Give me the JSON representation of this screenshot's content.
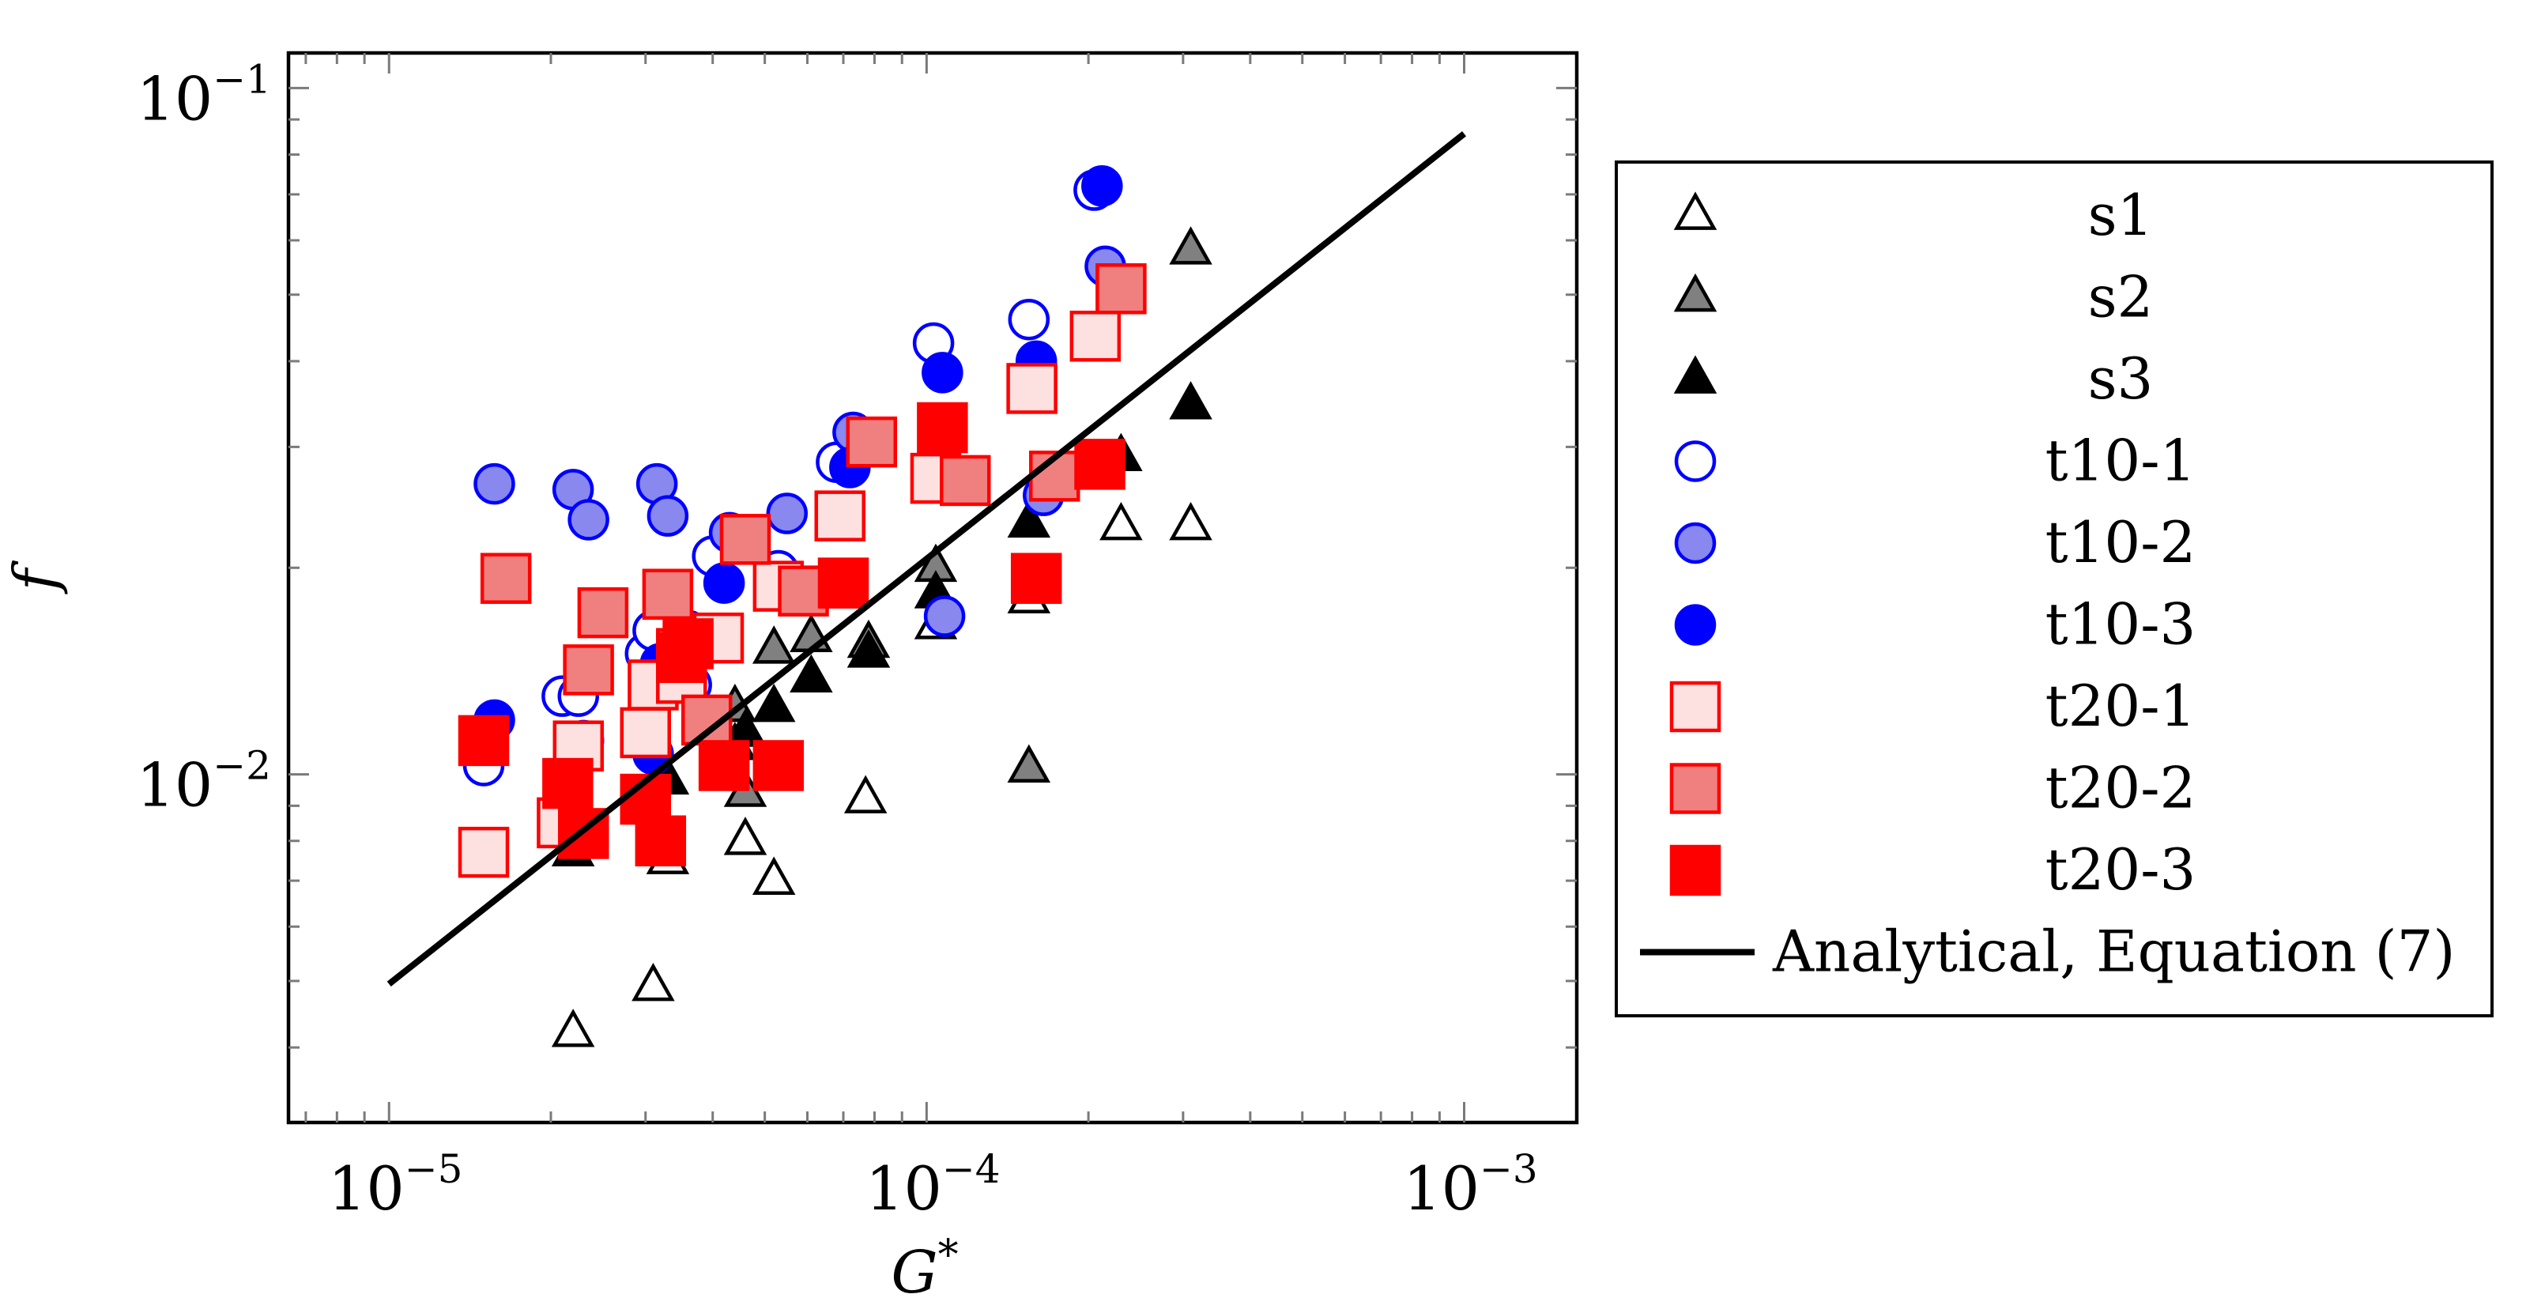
{
  "chart_data": {
    "type": "scatter",
    "title": "",
    "xlabel": "G*",
    "ylabel": "f",
    "xscale": "log",
    "yscale": "log",
    "xlim": [
      6.5e-06,
      0.00162
    ],
    "ylim": [
      0.00311,
      0.1125
    ],
    "xticks": [
      {
        "value": 1e-05,
        "base": "10",
        "exp": "−5"
      },
      {
        "value": 0.0001,
        "base": "10",
        "exp": "−4"
      },
      {
        "value": 0.001,
        "base": "10",
        "exp": "−3"
      }
    ],
    "yticks": [
      {
        "value": 0.01,
        "base": "10",
        "exp": "−2"
      },
      {
        "value": 0.1,
        "base": "10",
        "exp": "−1"
      }
    ],
    "legend_position": "outside-right",
    "series": [
      {
        "name": "s1",
        "marker": "triangle",
        "fill": "#ffffff",
        "stroke": "#000000",
        "points": [
          [
            2.2e-05,
            0.0042
          ],
          [
            3.1e-05,
            0.0049
          ],
          [
            3.3e-05,
            0.0075
          ],
          [
            4.6e-05,
            0.008
          ],
          [
            5.2e-05,
            0.007
          ],
          [
            7.7e-05,
            0.0092
          ],
          [
            0.000104,
            0.0165
          ],
          [
            0.000155,
            0.018
          ],
          [
            0.00023,
            0.023
          ],
          [
            0.00031,
            0.023
          ]
        ]
      },
      {
        "name": "s2",
        "marker": "triangle",
        "fill": "#808080",
        "stroke": "#000000",
        "points": [
          [
            4.4e-05,
            0.0125
          ],
          [
            4.6e-05,
            0.0094
          ],
          [
            5.2e-05,
            0.0152
          ],
          [
            6.1e-05,
            0.0158
          ],
          [
            7.8e-05,
            0.0155
          ],
          [
            0.000104,
            0.02
          ],
          [
            0.000155,
            0.0102
          ],
          [
            0.00031,
            0.058
          ]
        ]
      },
      {
        "name": "s3",
        "marker": "triangle",
        "fill": "#000000",
        "stroke": "#000000",
        "points": [
          [
            2.2e-05,
            0.0077
          ],
          [
            3.3e-05,
            0.0098
          ],
          [
            4.4e-05,
            0.011
          ],
          [
            4.6e-05,
            0.0115
          ],
          [
            5.2e-05,
            0.0125
          ],
          [
            6.1e-05,
            0.0138
          ],
          [
            7.8e-05,
            0.015
          ],
          [
            0.000104,
            0.0183
          ],
          [
            0.000155,
            0.0232
          ],
          [
            0.00023,
            0.029
          ],
          [
            0.00031,
            0.0345
          ]
        ]
      },
      {
        "name": "t10-1",
        "marker": "circle",
        "fill": "#ffffff",
        "stroke": "#0000ff",
        "points": [
          [
            1.5e-05,
            0.0103
          ],
          [
            2.1e-05,
            0.013
          ],
          [
            2.25e-05,
            0.013
          ],
          [
            3e-05,
            0.015
          ],
          [
            3.1e-05,
            0.0162
          ],
          [
            3.65e-05,
            0.0135
          ],
          [
            4e-05,
            0.0208
          ],
          [
            5.3e-05,
            0.0198
          ],
          [
            6.8e-05,
            0.0285
          ],
          [
            0.000103,
            0.0425
          ],
          [
            0.000155,
            0.046
          ],
          [
            0.000205,
            0.071
          ]
        ]
      },
      {
        "name": "t10-2",
        "marker": "circle",
        "fill": "#8888ee",
        "stroke": "#0000ff",
        "points": [
          [
            1.57e-05,
            0.0265
          ],
          [
            2.2e-05,
            0.026
          ],
          [
            2.35e-05,
            0.0235
          ],
          [
            2.3e-05,
            0.0112
          ],
          [
            3.15e-05,
            0.0265
          ],
          [
            3.3e-05,
            0.0238
          ],
          [
            4.3e-05,
            0.0225
          ],
          [
            5.5e-05,
            0.024
          ],
          [
            7.3e-05,
            0.0315
          ],
          [
            0.000108,
            0.017
          ],
          [
            0.000165,
            0.0255
          ],
          [
            0.000215,
            0.055
          ]
        ]
      },
      {
        "name": "t10-3",
        "marker": "circle",
        "fill": "#0000ff",
        "stroke": "#0000ff",
        "points": [
          [
            1.57e-05,
            0.012
          ],
          [
            2.15e-05,
            0.01
          ],
          [
            3.1e-05,
            0.0107
          ],
          [
            3.2e-05,
            0.0145
          ],
          [
            3.6e-05,
            0.0162
          ],
          [
            4.2e-05,
            0.019
          ],
          [
            7.2e-05,
            0.028
          ],
          [
            0.000107,
            0.0385
          ],
          [
            0.00016,
            0.04
          ],
          [
            0.000212,
            0.072
          ]
        ]
      },
      {
        "name": "t20-1",
        "marker": "square",
        "fill": "#fde0e0",
        "stroke": "#ff0000",
        "points": [
          [
            1.5e-05,
            0.0077
          ],
          [
            2.1e-05,
            0.0085
          ],
          [
            2.25e-05,
            0.011
          ],
          [
            3e-05,
            0.0115
          ],
          [
            3.1e-05,
            0.0135
          ],
          [
            3.5e-05,
            0.0138
          ],
          [
            4.1e-05,
            0.0158
          ],
          [
            5.3e-05,
            0.0188
          ],
          [
            6.9e-05,
            0.0238
          ],
          [
            0.000104,
            0.027
          ],
          [
            0.000157,
            0.0365
          ],
          [
            0.000206,
            0.0435
          ]
        ]
      },
      {
        "name": "t20-2",
        "marker": "square",
        "fill": "#f08080",
        "stroke": "#ff0000",
        "points": [
          [
            1.65e-05,
            0.0193
          ],
          [
            2.35e-05,
            0.0142
          ],
          [
            2.5e-05,
            0.0172
          ],
          [
            3.3e-05,
            0.0183
          ],
          [
            3.5e-05,
            0.015
          ],
          [
            3.9e-05,
            0.012
          ],
          [
            4.6e-05,
            0.022
          ],
          [
            5.9e-05,
            0.0185
          ],
          [
            7.9e-05,
            0.0305
          ],
          [
            0.000118,
            0.0268
          ],
          [
            0.000173,
            0.0272
          ],
          [
            0.00023,
            0.051
          ]
        ]
      },
      {
        "name": "t20-3",
        "marker": "square",
        "fill": "#ff0000",
        "stroke": "#ff0000",
        "points": [
          [
            1.5e-05,
            0.0112
          ],
          [
            2.15e-05,
            0.0097
          ],
          [
            2.3e-05,
            0.0082
          ],
          [
            3e-05,
            0.0092
          ],
          [
            3.2e-05,
            0.008
          ],
          [
            3.5e-05,
            0.0148
          ],
          [
            3.6e-05,
            0.0155
          ],
          [
            4.2e-05,
            0.0103
          ],
          [
            5.3e-05,
            0.0103
          ],
          [
            7e-05,
            0.019
          ],
          [
            0.000107,
            0.032
          ],
          [
            0.00016,
            0.0193
          ],
          [
            0.00021,
            0.0283
          ]
        ]
      },
      {
        "name": "Analytical, Equation (7)",
        "marker": "line",
        "stroke": "#000000",
        "points": [
          [
            1e-05,
            0.00495
          ],
          [
            0.001,
            0.0858
          ]
        ]
      }
    ]
  }
}
